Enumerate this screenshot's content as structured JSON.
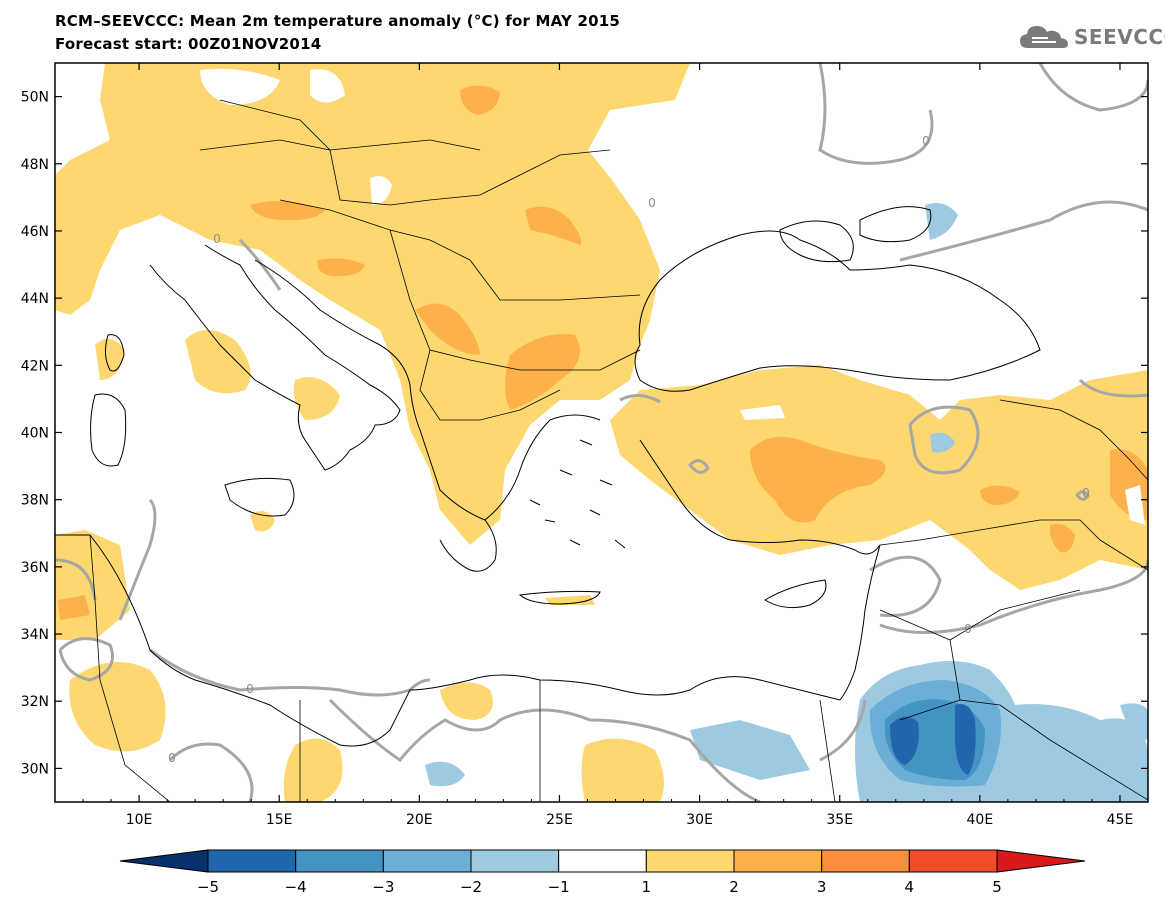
{
  "title": "RCM–SEEVCCC: Mean 2m temperature anomaly (°C) for MAY 2015",
  "subtitle": "Forecast start: 00Z01NOV2014",
  "logo": {
    "text": "SEEVCCC",
    "icon": "cloud-icon"
  },
  "map": {
    "lon_range": [
      7,
      46
    ],
    "lat_range": [
      29,
      51
    ],
    "lat_ticks": [
      "50N",
      "48N",
      "46N",
      "44N",
      "42N",
      "40N",
      "38N",
      "36N",
      "34N",
      "32N",
      "30N"
    ],
    "lon_ticks": [
      "10E",
      "15E",
      "20E",
      "25E",
      "30E",
      "35E",
      "40E",
      "45E"
    ],
    "contour_labels": [
      "0",
      "0",
      "0",
      "0",
      "0",
      "0",
      "0"
    ]
  },
  "colorbar": {
    "labels": [
      "−5",
      "−4",
      "−3",
      "−2",
      "−1",
      "1",
      "2",
      "3",
      "4",
      "5"
    ],
    "colors": [
      "#08306b",
      "#2166ac",
      "#4393c3",
      "#6baed6",
      "#9ecae1",
      "#ffffff",
      "#fdd870",
      "#fdb14a",
      "#fc8d3c",
      "#f04e2a",
      "#d7191c"
    ]
  },
  "colors": {
    "warm1": "#fdd870",
    "warm2": "#fdb14a",
    "warm3": "#fc8d3c",
    "cool1": "#9ecae1",
    "cool2": "#6baed6",
    "cool3": "#4393c3",
    "cool4": "#2166ac",
    "zero_contour": "#a6a6a6",
    "coast": "#000000"
  }
}
